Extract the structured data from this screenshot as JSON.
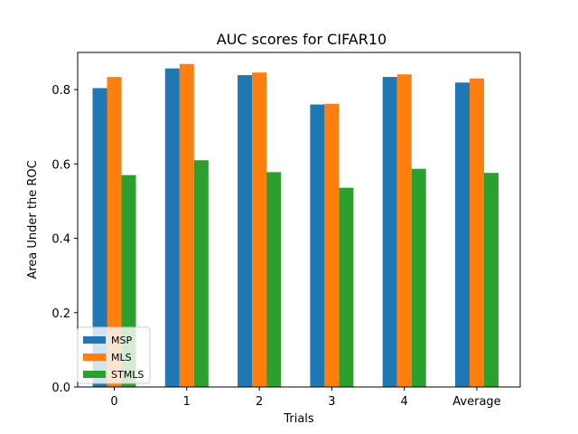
{
  "chart_data": {
    "type": "bar",
    "title": "AUC scores for CIFAR10",
    "xlabel": "Trials",
    "ylabel": "Area Under the ROC",
    "categories": [
      "0",
      "1",
      "2",
      "3",
      "4",
      "Average"
    ],
    "series": [
      {
        "name": "MSP",
        "color": "#1f77b4",
        "values": [
          0.804,
          0.857,
          0.839,
          0.76,
          0.834,
          0.819
        ]
      },
      {
        "name": "MLS",
        "color": "#ff7f0e",
        "values": [
          0.834,
          0.869,
          0.846,
          0.762,
          0.841,
          0.83
        ]
      },
      {
        "name": "STMLS",
        "color": "#2ca02c",
        "values": [
          0.57,
          0.61,
          0.578,
          0.536,
          0.587,
          0.576
        ]
      }
    ],
    "ylim": [
      0,
      0.9
    ],
    "yticks": [
      "0.0",
      "0.2",
      "0.4",
      "0.6",
      "0.8"
    ],
    "grid": false,
    "legend_position": "lower-left"
  }
}
